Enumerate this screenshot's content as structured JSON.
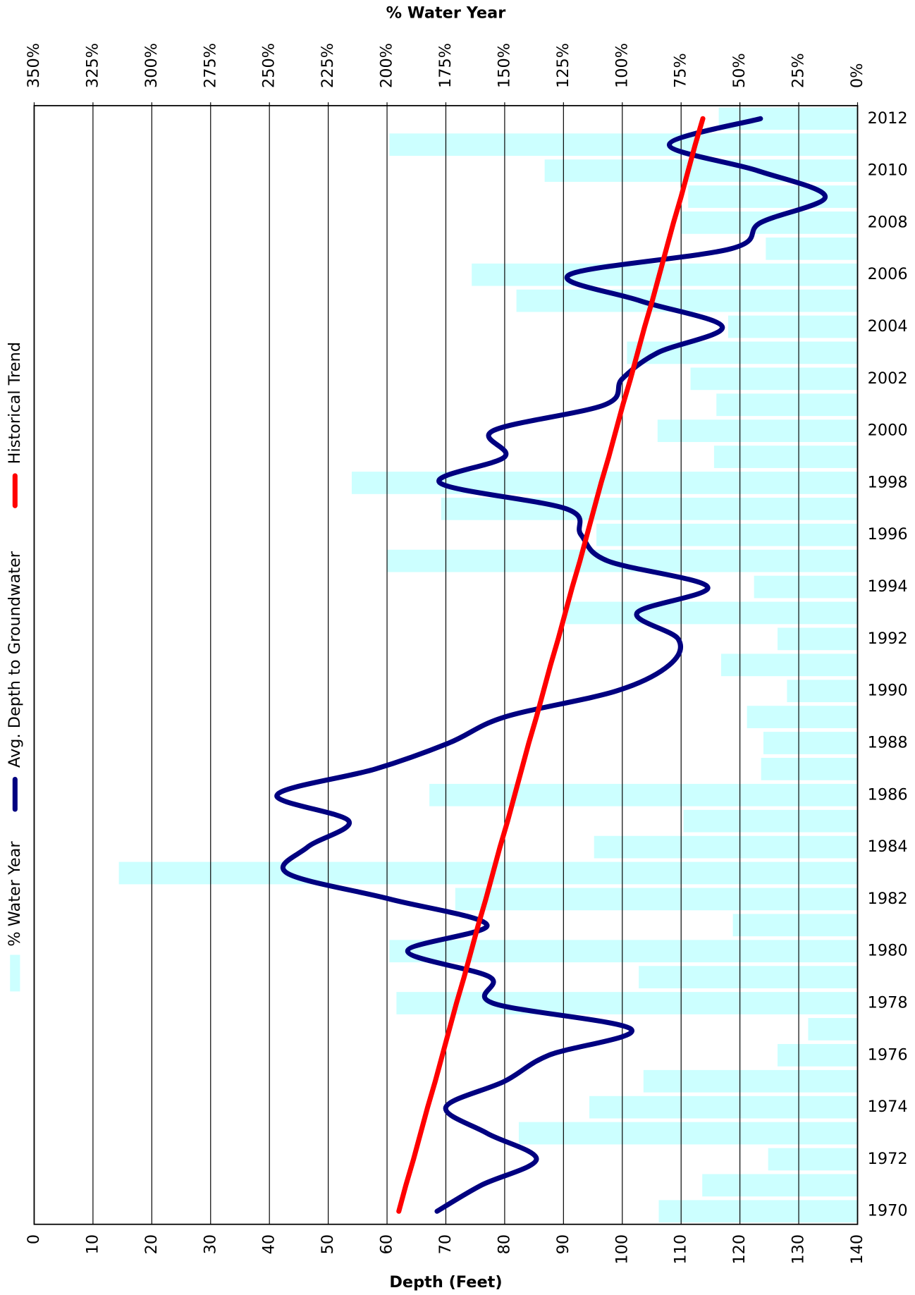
{
  "chart_data": {
    "type": "bar-line",
    "x2_title": "% Water Year",
    "x_title": "Depth (Feet)",
    "categories": [
      "1970",
      null,
      "1972",
      null,
      "1974",
      null,
      "1976",
      null,
      "1978",
      null,
      "1980",
      null,
      "1982",
      null,
      "1984",
      null,
      "1986",
      null,
      "1988",
      null,
      "1990",
      null,
      "1992",
      null,
      "1994",
      null,
      "1996",
      null,
      "1998",
      null,
      "2000",
      null,
      "2002",
      null,
      "2004",
      null,
      "2006",
      null,
      "2008",
      null,
      "2010",
      null,
      "2012"
    ],
    "xlim": [
      0,
      140
    ],
    "xticks": [
      0,
      10,
      20,
      30,
      40,
      50,
      60,
      70,
      80,
      90,
      100,
      110,
      120,
      130,
      140
    ],
    "x2lim": [
      350,
      0
    ],
    "x2ticks": [
      {
        "value": 350,
        "label": "350%"
      },
      {
        "value": 325,
        "label": "325%"
      },
      {
        "value": 300,
        "label": "300%"
      },
      {
        "value": 275,
        "label": "275%"
      },
      {
        "value": 250,
        "label": "250%"
      },
      {
        "value": 225,
        "label": "225%"
      },
      {
        "value": 200,
        "label": "200%"
      },
      {
        "value": 175,
        "label": "175%"
      },
      {
        "value": 150,
        "label": "150%"
      },
      {
        "value": 125,
        "label": "125%"
      },
      {
        "value": 100,
        "label": "100%"
      },
      {
        "value": 75,
        "label": "75%"
      },
      {
        "value": 50,
        "label": "50%"
      },
      {
        "value": 25,
        "label": "25%"
      },
      {
        "value": 0,
        "label": "0%"
      }
    ],
    "grid": true,
    "legend": "left",
    "series": [
      {
        "name": "% Water Year",
        "type": "bar",
        "axis": "x2",
        "color": "#ccffff",
        "values": [
          84.5,
          66,
          38,
          144,
          114,
          91,
          34,
          21,
          196,
          93,
          199,
          53,
          171,
          314,
          112,
          74,
          182,
          41,
          40,
          47,
          30,
          58,
          34,
          124,
          44,
          200,
          111,
          177,
          215,
          61,
          85,
          60,
          71,
          98,
          55,
          145,
          164,
          39,
          75,
          72,
          133,
          199,
          59
        ]
      },
      {
        "name": "Avg. Depth to Groundwater",
        "type": "line",
        "color": "#000080",
        "values": [
          68.5,
          76,
          85.4,
          77,
          70,
          80,
          87.5,
          101.5,
          78,
          77.5,
          63.5,
          77,
          60.5,
          43,
          46.5,
          53.5,
          41.3,
          58,
          70.5,
          80,
          99,
          108,
          109.5,
          102.5,
          114.5,
          97.5,
          93,
          90.5,
          69,
          80,
          78,
          97,
          100,
          106,
          117,
          103,
          91,
          118.5,
          123.5,
          134.5,
          123,
          108,
          123.5
        ]
      },
      {
        "name": "Historical Trend",
        "type": "line",
        "color": "#ff0000",
        "values": [
          62,
          63.2,
          64.5,
          65.7,
          66.9,
          68.2,
          69.4,
          70.6,
          71.8,
          73.1,
          74.3,
          75.5,
          76.8,
          78.0,
          79.2,
          80.5,
          81.7,
          82.9,
          84.1,
          85.4,
          86.6,
          87.8,
          89.1,
          90.3,
          91.5,
          92.8,
          94.0,
          95.2,
          96.4,
          97.7,
          98.9,
          100.1,
          101.4,
          102.6,
          103.8,
          105.1,
          106.3,
          107.5,
          108.7,
          110.0,
          111.2,
          112.4,
          113.7
        ]
      }
    ]
  }
}
